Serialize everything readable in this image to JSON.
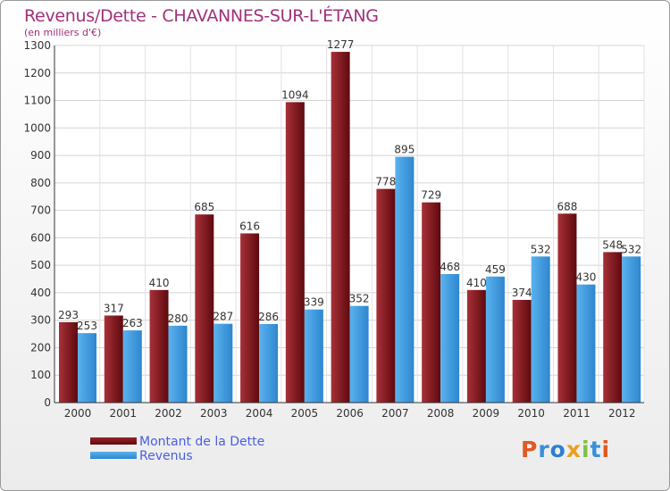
{
  "chart_data": {
    "type": "bar",
    "title": "Revenus/Dette - CHAVANNES-SUR-L'ÉTANG",
    "subtitle": "(en milliers d'€)",
    "categories": [
      "2000",
      "2001",
      "2002",
      "2003",
      "2004",
      "2005",
      "2006",
      "2007",
      "2008",
      "2009",
      "2010",
      "2011",
      "2012"
    ],
    "series": [
      {
        "name": "Montant de la Dette",
        "color": "#7a1418",
        "values": [
          293,
          317,
          410,
          685,
          616,
          1094,
          1277,
          778,
          729,
          410,
          374,
          688,
          548
        ]
      },
      {
        "name": "Revenus",
        "color": "#3f9fe4",
        "values": [
          253,
          263,
          280,
          287,
          286,
          339,
          352,
          895,
          468,
          459,
          532,
          430,
          532
        ]
      }
    ],
    "yticks": [
      0,
      100,
      200,
      300,
      400,
      500,
      600,
      700,
      800,
      900,
      1000,
      1100,
      1200,
      1300
    ],
    "ylim": [
      0,
      1300
    ],
    "grid": true,
    "legend_position": "bottom-left"
  },
  "logo": {
    "letters": [
      {
        "ch": "P",
        "color": "#e05a20"
      },
      {
        "ch": "r",
        "color": "#3a8fd8"
      },
      {
        "ch": "o",
        "color": "#2f7fd0"
      },
      {
        "ch": "x",
        "color": "#e8a020"
      },
      {
        "ch": "i",
        "color": "#7cc242"
      },
      {
        "ch": "t",
        "color": "#3a8fd8"
      },
      {
        "ch": "i",
        "color": "#e05a20"
      }
    ]
  }
}
